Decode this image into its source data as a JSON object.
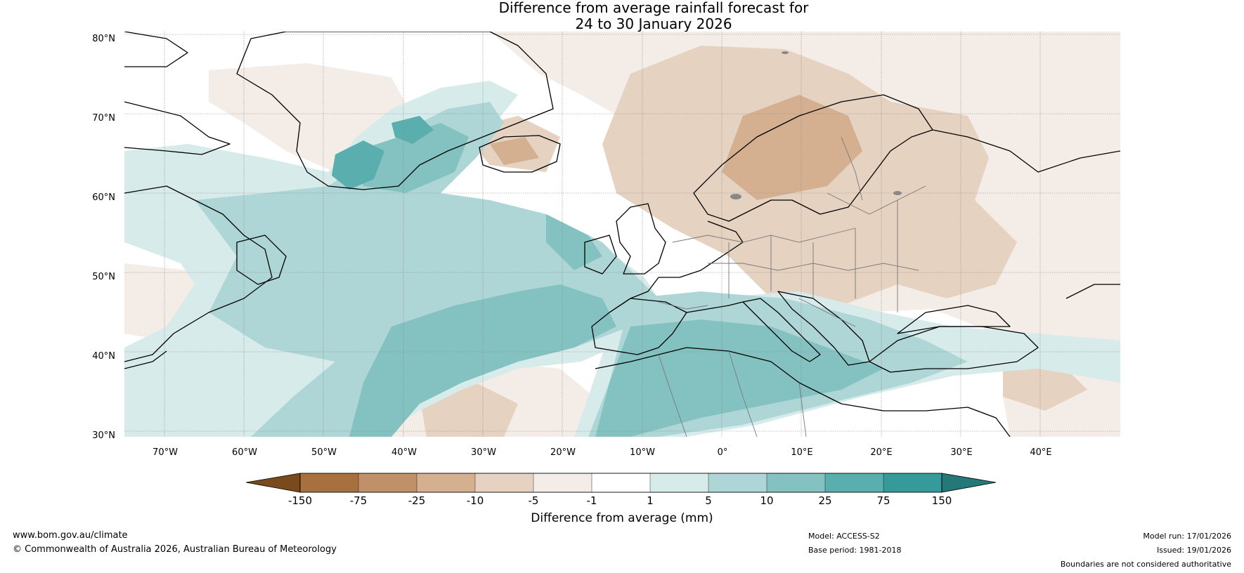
{
  "title": {
    "line1": "Difference from average rainfall forecast for",
    "line2": "24 to 30 January 2026"
  },
  "map": {
    "lat_labels": [
      "80°N",
      "70°N",
      "60°N",
      "50°N",
      "40°N",
      "30°N"
    ],
    "lon_labels": [
      "70°W",
      "60°W",
      "50°W",
      "40°W",
      "30°W",
      "20°W",
      "10°W",
      "0°",
      "10°E",
      "20°E",
      "30°E",
      "40°E"
    ],
    "extent": {
      "lon_min": -75,
      "lon_max": 50,
      "lat_min": 30,
      "lat_max": 81
    }
  },
  "colorbar": {
    "title": "Difference from average (mm)",
    "labels": [
      "-150",
      "-75",
      "-25",
      "-10",
      "-5",
      "-1",
      "1",
      "5",
      "10",
      "25",
      "75",
      "150"
    ],
    "colors": [
      "#7a4a1c",
      "#a8703e",
      "#c09068",
      "#d4b090",
      "#e6d2c0",
      "#f4ece6",
      "#ffffff",
      "#d8ebeb",
      "#aed6d6",
      "#84c2c2",
      "#5aaeae",
      "#369a9a",
      "#247878"
    ]
  },
  "footer": {
    "website": "www.bom.gov.au/climate",
    "copyright": "© Commonwealth of Australia 2026, Australian Bureau of Meteorology",
    "model": "Model: ACCESS-S2",
    "base_period": "Base period: 1981-2018",
    "model_run": "Model run: 17/01/2026",
    "issued": "Issued: 19/01/2026",
    "disclaimer": "Boundaries are not considered authoritative"
  }
}
